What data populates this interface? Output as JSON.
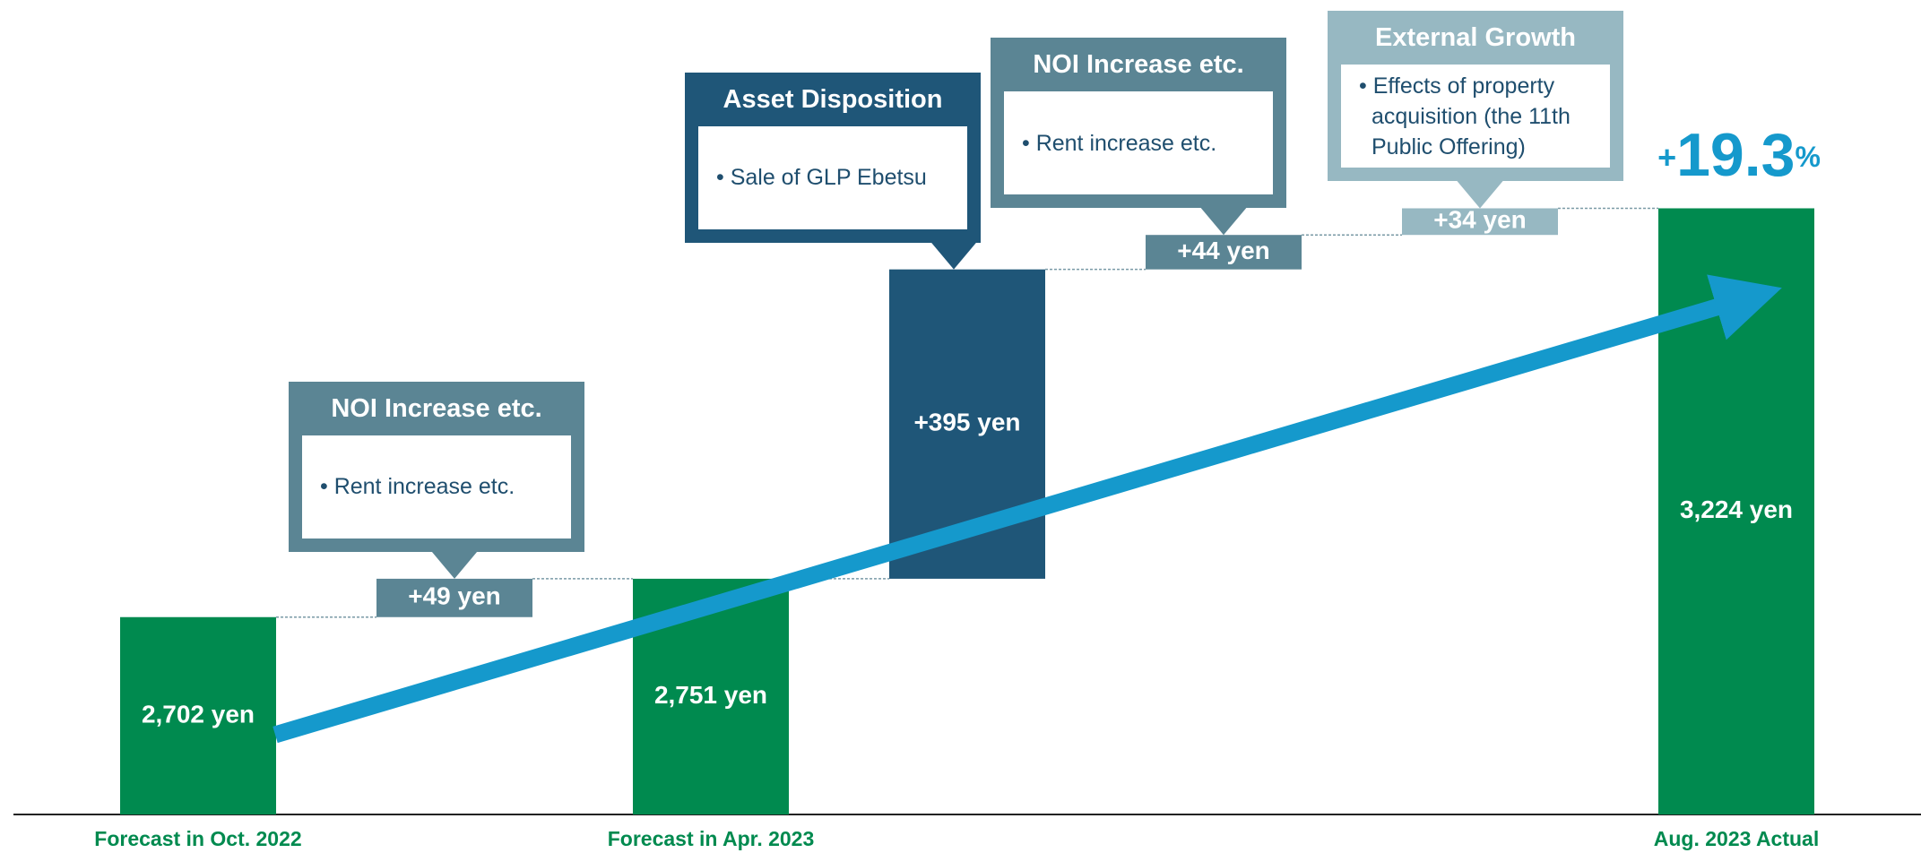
{
  "chart_data": {
    "type": "waterfall",
    "categories": [
      "Forecast in Oct. 2022",
      null,
      "Forecast in Apr. 2023",
      null,
      null,
      null,
      "Aug. 2023 Actual"
    ],
    "values": [
      2702,
      49,
      2751,
      395,
      44,
      34,
      3224
    ],
    "value_labels": [
      "2,702 yen",
      "+49 yen",
      "2,751 yen",
      "+395 yen",
      "+44 yen",
      "+34 yen",
      "3,224 yen"
    ],
    "measures": [
      "total",
      "relative",
      "total",
      "relative",
      "relative",
      "relative",
      "total"
    ],
    "colors": [
      "#008a4f",
      "#5b8594",
      "#008a4f",
      "#1f5678",
      "#5b8594",
      "#97b8c2",
      "#008a4f"
    ],
    "callouts": [
      null,
      {
        "title": "NOI Increase etc.",
        "text": "• Rent increase etc."
      },
      null,
      {
        "title": "Asset Disposition",
        "text": "• Sale of GLP Ebetsu"
      },
      {
        "title": "NOI Increase etc.",
        "text": "• Rent increase etc."
      },
      {
        "title": "External Growth",
        "text": "• Effects of property acquisition (the 11th Public Offering)"
      },
      null
    ],
    "growth_label": [
      "+",
      "19.3",
      "%"
    ],
    "ylim": [
      2450,
      3490
    ]
  }
}
